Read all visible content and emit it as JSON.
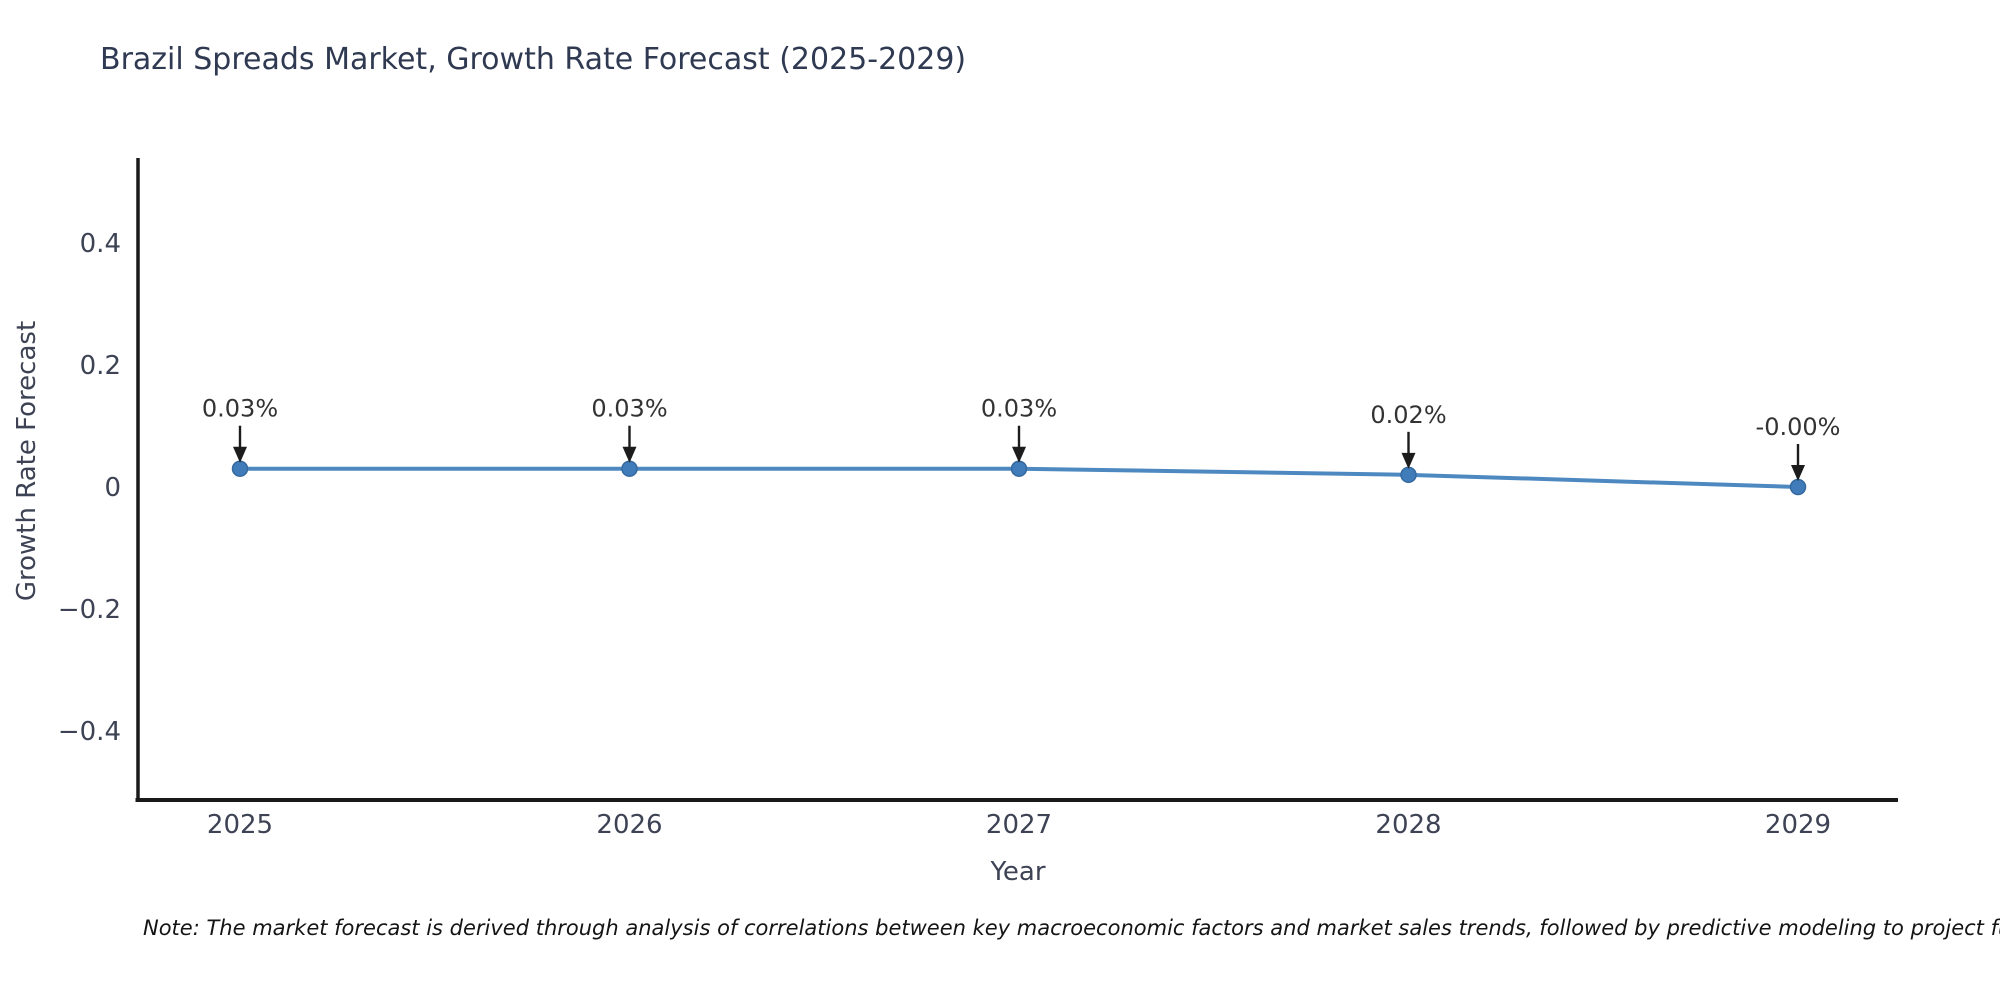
{
  "chart_data": {
    "type": "line",
    "title": "Brazil Spreads Market, Growth Rate Forecast (2025-2029)",
    "xlabel": "Year",
    "ylabel": "Growth Rate Forecast",
    "categories": [
      "2025",
      "2026",
      "2027",
      "2028",
      "2029"
    ],
    "series": [
      {
        "name": "Growth Rate Forecast",
        "values": [
          0.03,
          0.03,
          0.03,
          0.02,
          -0.0
        ]
      }
    ],
    "point_labels": [
      "0.03%",
      "0.03%",
      "0.03%",
      "0.02%",
      "-0.00%"
    ],
    "yticks": [
      0.4,
      0.2,
      0,
      -0.2,
      -0.4
    ],
    "ytick_labels": [
      "0.4",
      "0.2",
      "0",
      "−0.2",
      "−0.4"
    ],
    "ylim": [
      -0.51,
      0.54
    ],
    "grid": false,
    "legend": false,
    "colors": {
      "line": "#4d89c0",
      "marker": "#3f7cb9",
      "marker_edge": "#35699f",
      "annotation_text": "#333333",
      "arrow": "#1c1c1c",
      "axis": "#1a1a1a",
      "tick_text": "#3d4354",
      "title_text": "#2f3a52"
    }
  },
  "footnote": "Note: The market forecast is derived through analysis of correlations between key macroeconomic factors and market sales trends, followed by predictive modeling to project future sa"
}
